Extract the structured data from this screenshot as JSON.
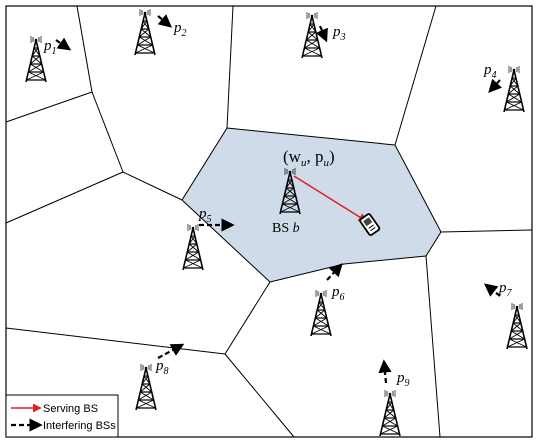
{
  "colors": {
    "serving_cell": "#cfdbe8",
    "serving_arrow": "#e02020",
    "line": "#000000"
  },
  "serving_bs": {
    "label_main": "BS ",
    "label_var": "b",
    "user_label": "(w",
    "user_sub_w": "u",
    "user_mid": ", p",
    "user_sub_p": "u",
    "user_close": ")"
  },
  "interferers": [
    {
      "name": "p",
      "sub": "1"
    },
    {
      "name": "p",
      "sub": "2"
    },
    {
      "name": "p",
      "sub": "3"
    },
    {
      "name": "p",
      "sub": "4"
    },
    {
      "name": "p",
      "sub": "5"
    },
    {
      "name": "p",
      "sub": "6"
    },
    {
      "name": "p",
      "sub": "7"
    },
    {
      "name": "p",
      "sub": "8"
    },
    {
      "name": "p",
      "sub": "9"
    }
  ],
  "legend": {
    "serving": "Serving BS",
    "interfering": "Interfering BSs"
  }
}
